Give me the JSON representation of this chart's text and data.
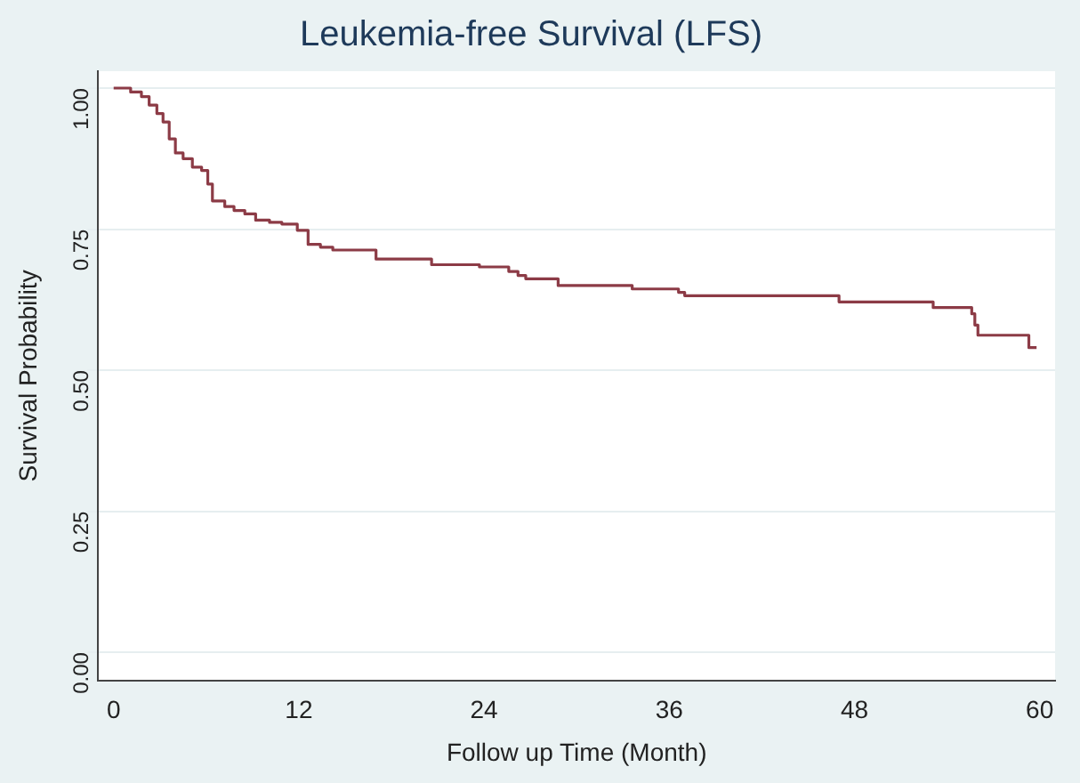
{
  "chart_data": {
    "type": "step",
    "title": "Leukemia-free Survival (LFS)",
    "xlabel": "Follow up Time (Month)",
    "ylabel": "Survival Probability",
    "x": [
      0,
      1.1,
      1.8,
      2.3,
      2.8,
      3.2,
      3.6,
      4.0,
      4.5,
      5.1,
      5.7,
      6.1,
      6.4,
      7.2,
      7.8,
      8.5,
      9.2,
      10.1,
      10.9,
      11.9,
      12.6,
      13.4,
      14.2,
      17.0,
      20.6,
      23.7,
      25.6,
      26.2,
      26.7,
      28.8,
      33.6,
      36.6,
      37.0,
      47.0,
      53.1,
      55.6,
      55.8,
      56.0,
      59.3,
      59.8
    ],
    "series": [
      {
        "color": "#8c3b46",
        "values": [
          1.0,
          0.993,
          0.985,
          0.97,
          0.955,
          0.94,
          0.91,
          0.885,
          0.875,
          0.86,
          0.854,
          0.83,
          0.8,
          0.79,
          0.783,
          0.777,
          0.766,
          0.762,
          0.759,
          0.748,
          0.723,
          0.718,
          0.713,
          0.697,
          0.687,
          0.683,
          0.675,
          0.668,
          0.662,
          0.65,
          0.644,
          0.638,
          0.632,
          0.621,
          0.611,
          0.6,
          0.58,
          0.562,
          0.54,
          0.54
        ]
      }
    ],
    "xlim": [
      -1,
      61
    ],
    "xticks": [
      0,
      12,
      24,
      36,
      48,
      60
    ],
    "ylim": [
      -0.05,
      1.03
    ],
    "yticks": [
      {
        "value": 0,
        "label": "0.00"
      },
      {
        "value": 0.25,
        "label": "0.25"
      },
      {
        "value": 0.5,
        "label": "0.50"
      },
      {
        "value": 0.75,
        "label": "0.75"
      },
      {
        "value": 1,
        "label": "1.00"
      }
    ],
    "grid": "y",
    "line_style": "solid"
  }
}
